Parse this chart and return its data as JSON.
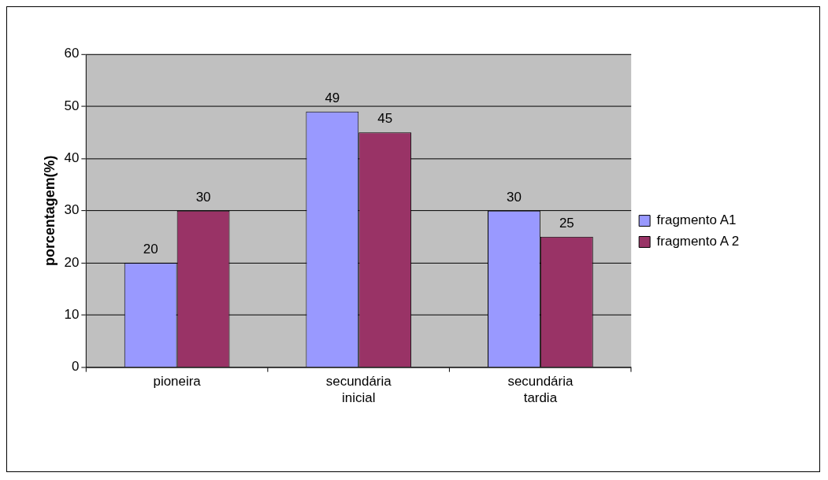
{
  "chart_data": {
    "type": "bar",
    "ylabel": "porcentagem(%)",
    "categories": [
      "pioneira",
      "secundária inicial",
      "secundária tardia"
    ],
    "series": [
      {
        "name": "fragmento A1",
        "color": "#9999ff",
        "values": [
          20,
          49,
          30
        ]
      },
      {
        "name": "fragmento A 2",
        "color": "#993366",
        "values": [
          30,
          45,
          25
        ]
      }
    ],
    "ylim": [
      0,
      60
    ],
    "yticks": [
      0,
      10,
      20,
      30,
      40,
      50,
      60
    ],
    "grid": "y",
    "legend": "right",
    "data_labels": true
  }
}
